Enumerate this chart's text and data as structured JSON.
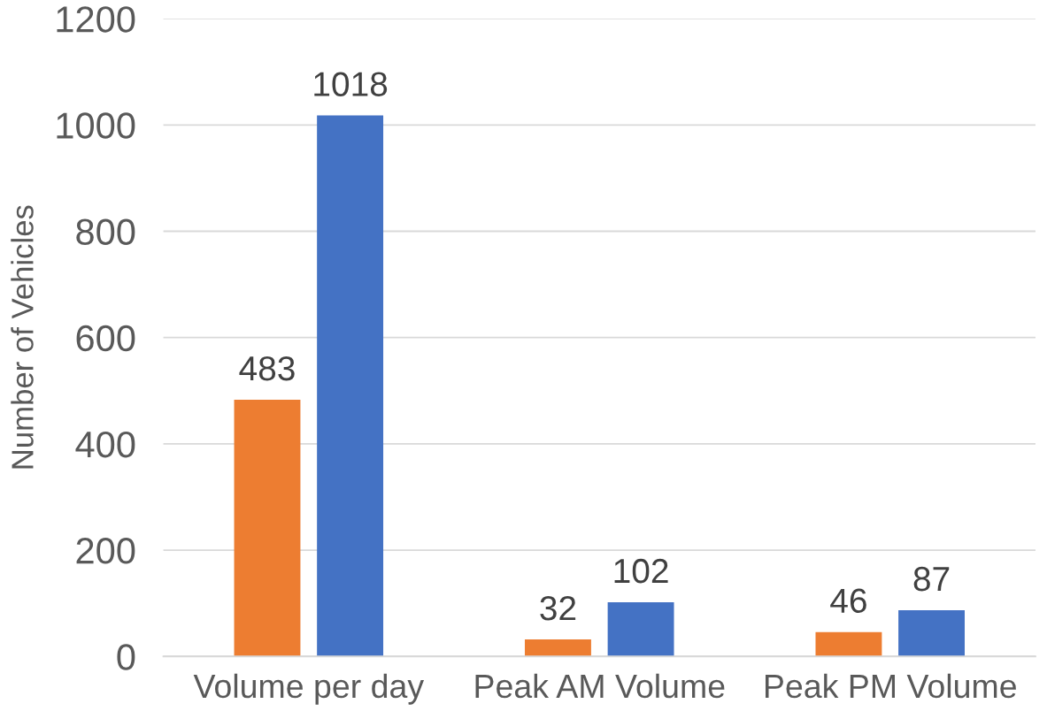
{
  "chart_data": {
    "type": "bar",
    "categories": [
      "Volume per day",
      "Peak AM Volume",
      "Peak PM Volume"
    ],
    "series": [
      {
        "color": "#ed7d31",
        "values": [
          483,
          32,
          46
        ]
      },
      {
        "color": "#4472c4",
        "values": [
          1018,
          102,
          87
        ]
      }
    ],
    "ylabel": "Number of Vehicles",
    "ylim": [
      0,
      1200
    ],
    "yticks": [
      0,
      200,
      400,
      600,
      800,
      1000,
      1200
    ],
    "grid": "y",
    "data_labels": true
  }
}
